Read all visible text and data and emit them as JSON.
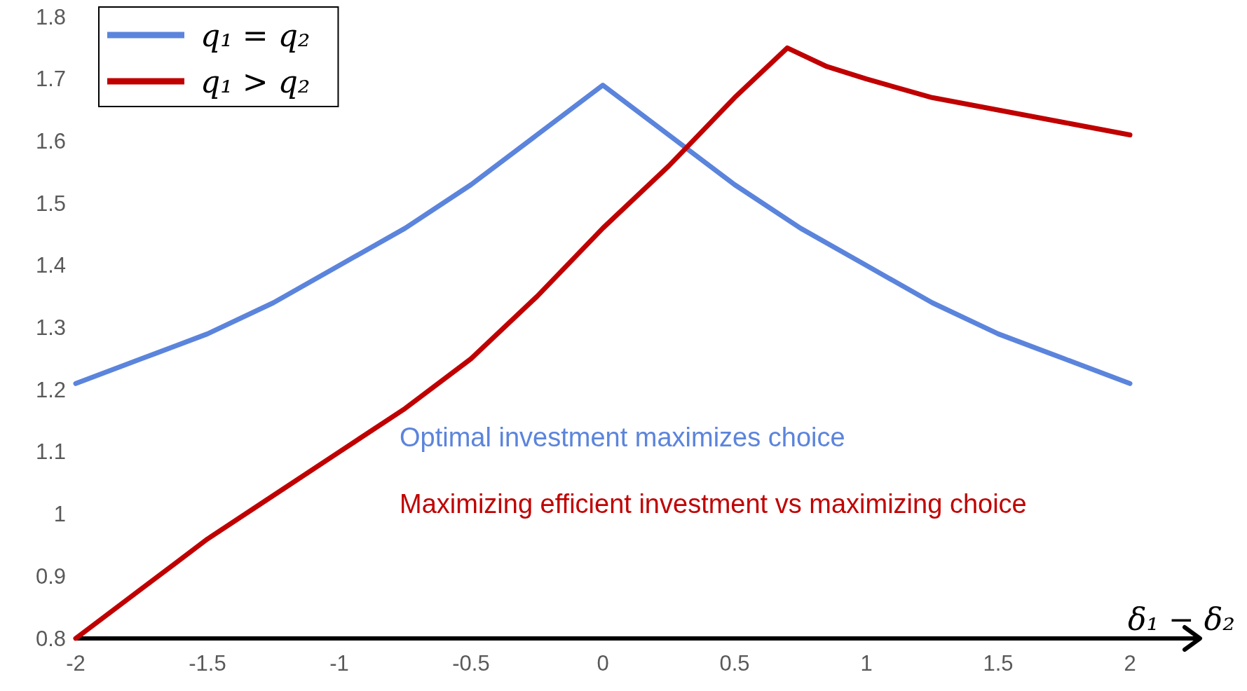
{
  "chart_data": {
    "type": "line",
    "xlabel": "δ₁ − δ₂",
    "series": [
      {
        "name": "q₁ = q₂",
        "color": "#5b84dc",
        "x": [
          -2,
          -1.75,
          -1.5,
          -1.25,
          -1,
          -0.75,
          -0.5,
          -0.25,
          0,
          0.25,
          0.5,
          0.75,
          1,
          1.25,
          1.5,
          1.75,
          2
        ],
        "values": [
          1.21,
          1.25,
          1.29,
          1.34,
          1.4,
          1.46,
          1.53,
          1.61,
          1.69,
          1.61,
          1.53,
          1.46,
          1.4,
          1.34,
          1.29,
          1.25,
          1.21
        ]
      },
      {
        "name": "q₁ > q₂",
        "color": "#c00000",
        "x": [
          -2,
          -1.75,
          -1.5,
          -1.25,
          -1,
          -0.75,
          -0.5,
          -0.25,
          0,
          0.25,
          0.5,
          0.7,
          0.85,
          1,
          1.25,
          1.5,
          1.75,
          2
        ],
        "values": [
          0.8,
          0.88,
          0.96,
          1.03,
          1.1,
          1.17,
          1.25,
          1.35,
          1.46,
          1.56,
          1.67,
          1.75,
          1.72,
          1.7,
          1.67,
          1.65,
          1.63,
          1.61
        ]
      }
    ],
    "annotations": [
      "Optimal investment maximizes choice",
      "Maximizing efficient investment vs maximizing choice"
    ],
    "xlim": [
      -2,
      2
    ],
    "ylim": [
      0.8,
      1.8
    ],
    "xticks": [
      -2,
      -1.5,
      -1,
      -0.5,
      0,
      0.5,
      1,
      1.5,
      2
    ],
    "yticks": [
      0.8,
      0.9,
      1,
      1.1,
      1.2,
      1.3,
      1.4,
      1.5,
      1.6,
      1.7,
      1.8
    ],
    "grid": false,
    "legend": "top left",
    "marker": "none"
  }
}
